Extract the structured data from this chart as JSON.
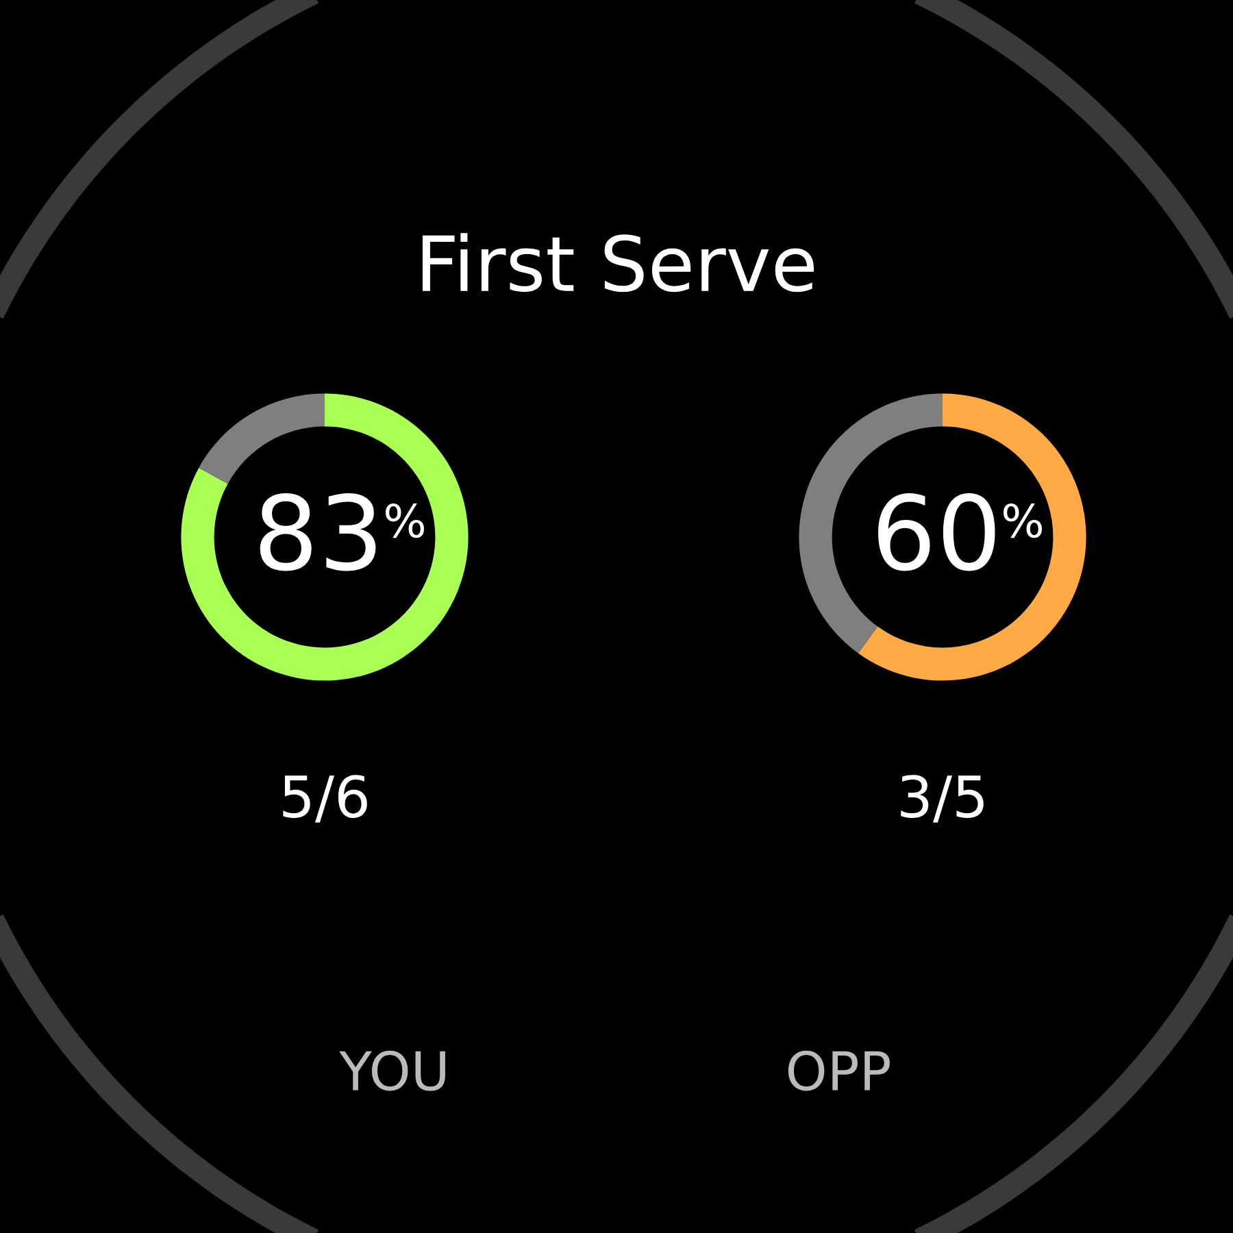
{
  "chart_data": [
    {
      "type": "other",
      "title": "First Serve"
    },
    {
      "type": "donut",
      "categories": [
        null,
        null
      ],
      "values": [
        83,
        17
      ],
      "colors": [
        "#aaff55",
        "#7f7f7f"
      ],
      "annotations": [
        "83",
        "%",
        "5/6"
      ],
      "xlabel": "YOU"
    },
    {
      "type": "donut",
      "categories": [
        null,
        null
      ],
      "values": [
        60,
        40
      ],
      "colors": [
        "#ffaa44",
        "#7f7f7f"
      ],
      "annotations": [
        "60",
        "%",
        "3/5"
      ],
      "xlabel": "OPP"
    }
  ]
}
